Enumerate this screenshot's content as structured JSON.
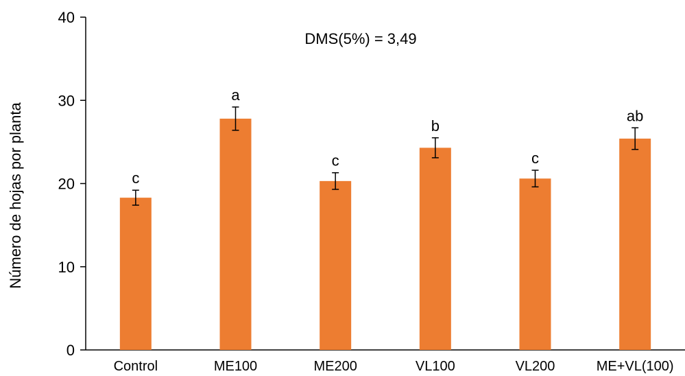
{
  "chart_data": {
    "type": "bar",
    "title": "",
    "xlabel": "",
    "ylabel": "Número de hojas por planta",
    "ylim": [
      0,
      40
    ],
    "yticks": [
      0,
      10,
      20,
      30,
      40
    ],
    "grid": false,
    "legend": "none",
    "annotation": "DMS(5%) = 3,49",
    "bar_color": "#ED7D31",
    "categories": [
      "Control",
      "ME100",
      "ME200",
      "VL100",
      "VL200",
      "ME+VL(100)"
    ],
    "values": [
      18.3,
      27.8,
      20.3,
      24.3,
      20.6,
      25.4
    ],
    "errors": [
      0.9,
      1.4,
      1.0,
      1.2,
      1.0,
      1.3
    ],
    "significance": [
      "c",
      "a",
      "c",
      "b",
      "c",
      "ab"
    ]
  }
}
